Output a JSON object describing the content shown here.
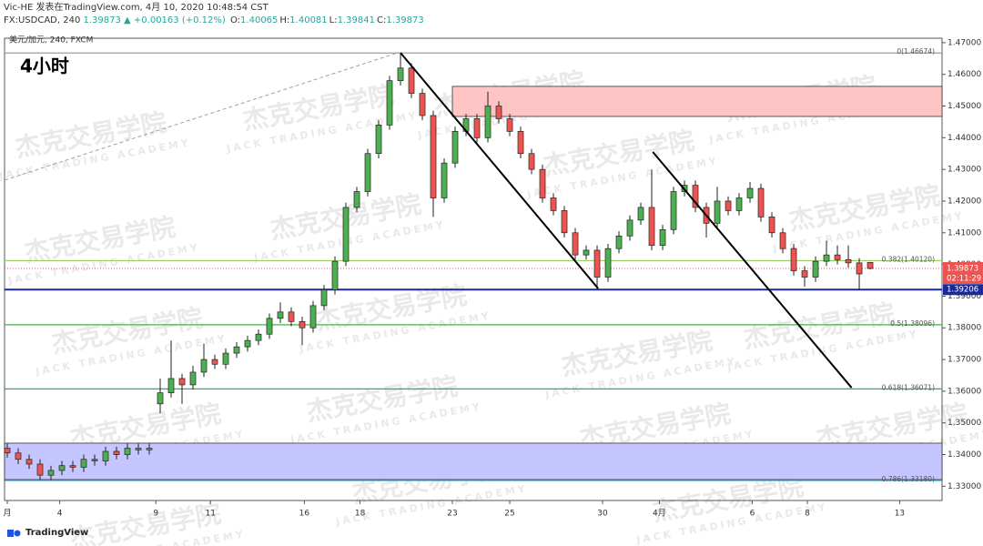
{
  "header": {
    "line1": "Vic-HE 发表在TradingView.com, 4月 10, 2020 10:48:54 CST",
    "symbol": "FX:USDCAD, 240",
    "last": "1.39873",
    "change": "▲ +0.00163 (+0.12%)",
    "ohlc": [
      [
        "O:",
        "1.40065"
      ],
      [
        "H:",
        "1.40081"
      ],
      [
        "L:",
        "1.39841"
      ],
      [
        "C:",
        "1.39873"
      ]
    ]
  },
  "chart_data": {
    "type": "candlestick",
    "legend": "美元/加元, 240, FXCM",
    "timeframe_label": "4小时",
    "up_color": "#4caf50",
    "down_color": "#ef5350",
    "open": [
      1.342,
      1.3405,
      1.3385,
      1.337,
      1.3335,
      1.335,
      1.3365,
      1.336,
      1.3385,
      1.338,
      1.341,
      1.34,
      1.342,
      1.3415,
      1.356,
      1.3595,
      1.364,
      1.362,
      1.366,
      1.37,
      1.3685,
      1.372,
      1.374,
      1.376,
      1.378,
      1.383,
      1.385,
      1.382,
      1.38,
      1.387,
      1.392,
      1.401,
      1.418,
      1.423,
      1.435,
      1.444,
      1.458,
      1.462,
      1.454,
      1.447,
      1.421,
      1.432,
      1.442,
      1.446,
      1.44,
      1.45,
      1.446,
      1.442,
      1.435,
      1.43,
      1.421,
      1.417,
      1.41,
      1.403,
      1.4045,
      1.396,
      1.405,
      1.409,
      1.414,
      1.418,
      1.406,
      1.411,
      1.423,
      1.425,
      1.418,
      1.413,
      1.42,
      1.417,
      1.421,
      1.424,
      1.415,
      1.41,
      1.405,
      1.398,
      1.396,
      1.401,
      1.403,
      1.4015,
      1.4005,
      1.40065
    ],
    "high": [
      1.3435,
      1.342,
      1.34,
      1.3385,
      1.3365,
      1.338,
      1.338,
      1.34,
      1.34,
      1.3425,
      1.3425,
      1.3435,
      1.3435,
      1.3435,
      1.364,
      1.376,
      1.3655,
      1.368,
      1.375,
      1.3715,
      1.3735,
      1.3755,
      1.3775,
      1.3795,
      1.3845,
      1.388,
      1.3865,
      1.3835,
      1.3885,
      1.3935,
      1.4025,
      1.4195,
      1.4245,
      1.4365,
      1.4455,
      1.4595,
      1.4667,
      1.4635,
      1.4555,
      1.4485,
      1.4335,
      1.4435,
      1.4475,
      1.4475,
      1.4545,
      1.4515,
      1.4475,
      1.4435,
      1.4365,
      1.4315,
      1.4225,
      1.4185,
      1.4115,
      1.406,
      1.406,
      1.4065,
      1.4105,
      1.4155,
      1.4195,
      1.43,
      1.4125,
      1.4245,
      1.4265,
      1.4265,
      1.4195,
      1.4245,
      1.4215,
      1.4225,
      1.426,
      1.4255,
      1.4165,
      1.4115,
      1.4065,
      1.3995,
      1.4025,
      1.4075,
      1.406,
      1.406,
      1.402,
      1.40081
    ],
    "low": [
      1.339,
      1.337,
      1.3355,
      1.332,
      1.332,
      1.3335,
      1.3345,
      1.3345,
      1.3365,
      1.3365,
      1.3385,
      1.3385,
      1.34,
      1.34,
      1.353,
      1.358,
      1.356,
      1.3605,
      1.3645,
      1.367,
      1.367,
      1.3705,
      1.3725,
      1.3745,
      1.3765,
      1.3815,
      1.3805,
      1.3745,
      1.3785,
      1.3855,
      1.3905,
      1.3995,
      1.4165,
      1.4215,
      1.4335,
      1.4425,
      1.4565,
      1.4525,
      1.4455,
      1.415,
      1.4195,
      1.4305,
      1.4405,
      1.4385,
      1.4385,
      1.4445,
      1.4405,
      1.4335,
      1.4285,
      1.4195,
      1.4155,
      1.4085,
      1.4015,
      1.4015,
      1.392,
      1.3945,
      1.4035,
      1.4075,
      1.4125,
      1.4045,
      1.4045,
      1.4095,
      1.4215,
      1.4165,
      1.4085,
      1.4115,
      1.4155,
      1.4155,
      1.4195,
      1.4135,
      1.4085,
      1.4035,
      1.3965,
      1.393,
      1.3945,
      1.3995,
      1.4,
      1.399,
      1.392,
      1.39841
    ],
    "close": [
      1.3405,
      1.3385,
      1.337,
      1.3335,
      1.335,
      1.3365,
      1.336,
      1.3385,
      1.338,
      1.341,
      1.34,
      1.342,
      1.3415,
      1.342,
      1.3595,
      1.364,
      1.362,
      1.366,
      1.37,
      1.3685,
      1.372,
      1.374,
      1.376,
      1.378,
      1.383,
      1.385,
      1.382,
      1.38,
      1.387,
      1.392,
      1.401,
      1.418,
      1.423,
      1.435,
      1.444,
      1.458,
      1.462,
      1.454,
      1.447,
      1.421,
      1.432,
      1.442,
      1.446,
      1.44,
      1.45,
      1.446,
      1.442,
      1.435,
      1.43,
      1.421,
      1.417,
      1.41,
      1.403,
      1.4045,
      1.396,
      1.405,
      1.409,
      1.414,
      1.418,
      1.406,
      1.411,
      1.423,
      1.425,
      1.418,
      1.413,
      1.42,
      1.417,
      1.421,
      1.424,
      1.415,
      1.41,
      1.405,
      1.398,
      1.396,
      1.401,
      1.403,
      1.4015,
      1.4005,
      1.397,
      1.39873
    ],
    "xlim": [
      -0.25,
      85.58
    ],
    "ylim": [
      1.3255,
      1.4714
    ],
    "yticks": [
      {
        "value": 1.47,
        "label": "1.47000"
      },
      {
        "value": 1.46,
        "label": "1.46000"
      },
      {
        "value": 1.45,
        "label": "1.45000"
      },
      {
        "value": 1.44,
        "label": "1.44000"
      },
      {
        "value": 1.43,
        "label": "1.43000"
      },
      {
        "value": 1.42,
        "label": "1.42000"
      },
      {
        "value": 1.41,
        "label": "1.41000"
      },
      {
        "value": 1.4,
        "label": "1.40000"
      },
      {
        "value": 1.39,
        "label": "1.39000"
      },
      {
        "value": 1.38,
        "label": "1.38000"
      },
      {
        "value": 1.37,
        "label": "1.37000"
      },
      {
        "value": 1.36,
        "label": "1.36000"
      },
      {
        "value": 1.35,
        "label": "1.35000"
      },
      {
        "value": 1.34,
        "label": "1.34000"
      },
      {
        "value": 1.33,
        "label": "1.33000"
      }
    ],
    "xticks": [
      {
        "value": 0,
        "label": "月"
      },
      {
        "value": 4.8,
        "label": "4"
      },
      {
        "value": 13.6,
        "label": "9"
      },
      {
        "value": 18.6,
        "label": "11"
      },
      {
        "value": 27.2,
        "label": "16"
      },
      {
        "value": 32.3,
        "label": "18"
      },
      {
        "value": 40.75,
        "label": "23"
      },
      {
        "value": 46,
        "label": "25"
      },
      {
        "value": 54.5,
        "label": "30"
      },
      {
        "value": 59.7,
        "label": "4月"
      },
      {
        "value": 68.2,
        "label": "6"
      },
      {
        "value": 73.25,
        "label": "8"
      },
      {
        "value": 81.7,
        "label": "13"
      }
    ],
    "zones": [
      {
        "start": 40.75,
        "top": 1.4562,
        "bottom": 1.4467,
        "color": "#ffc4c4"
      },
      {
        "start": -0.25,
        "top": 1.3436,
        "bottom": 1.3321,
        "color": "#c5c5ff"
      }
    ],
    "levels": [
      {
        "value": 1.46674,
        "label": "0(1.46674)",
        "color": "#9e9e9e"
      },
      {
        "value": 1.4012,
        "label": "0.382(1.40120)",
        "color": "#9ccc65"
      },
      {
        "value": 1.38096,
        "label": "0.5(1.38096)",
        "color": "#4caf50"
      },
      {
        "value": 1.36071,
        "label": "0.618(1.36071)",
        "color": "#26a69a"
      },
      {
        "value": 1.3318,
        "label": "0.786(1.33180)",
        "color": "#3ea6c9"
      }
    ],
    "trendlines": [
      {
        "from": [
          36,
          1.4668
        ],
        "to": [
          54.1,
          1.3924
        ],
        "color": "#000000",
        "dashed": false
      },
      {
        "from": [
          59.1,
          1.4355
        ],
        "to": [
          77.3,
          1.3611
        ],
        "color": "#000000",
        "dashed": false
      },
      {
        "from": [
          -0.25,
          1.4266
        ],
        "to": [
          35.75,
          1.4668
        ],
        "color": "#9e9e9e",
        "dashed": true
      }
    ],
    "support": {
      "value": 1.39206,
      "color": "#1a2a9e"
    },
    "last_price": {
      "value": 1.39873,
      "color": "#ef5350",
      "countdown": "02:11:29"
    }
  },
  "watermark": {
    "text": "杰克交易学院",
    "subtext": "JACK TRADING ACADEMY"
  },
  "footer": {
    "brand": "TradingView"
  }
}
